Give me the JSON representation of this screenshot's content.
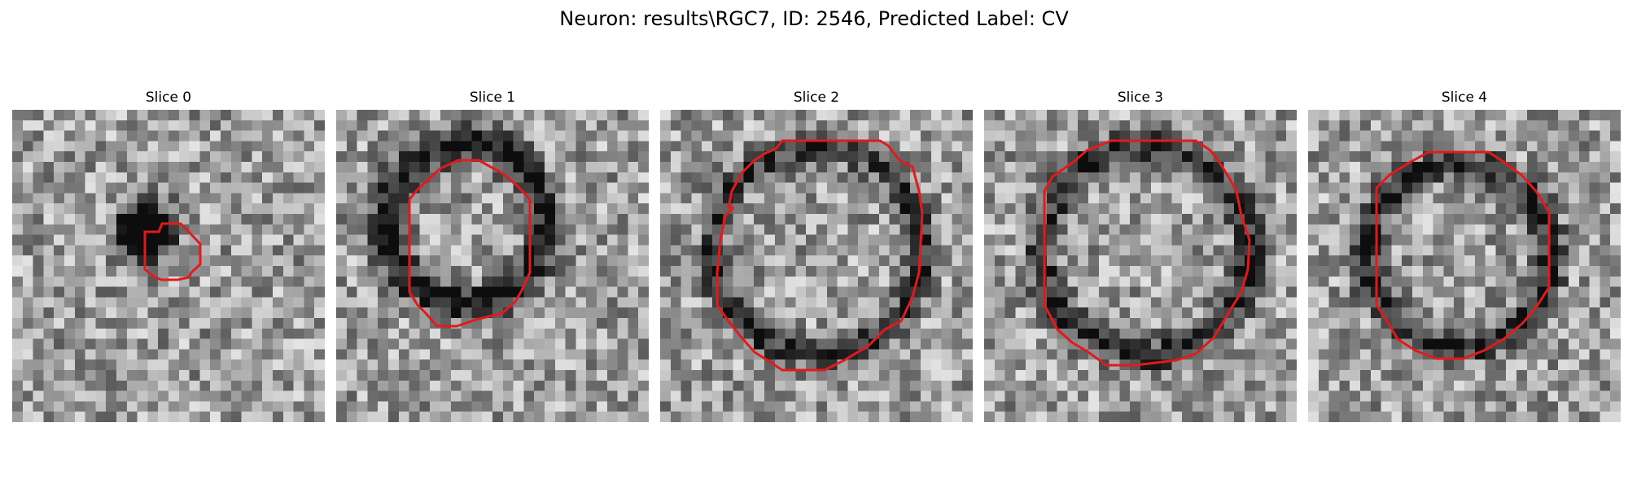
{
  "figure": {
    "title": "Neuron: results\\RGC7, ID: 2546, Predicted Label: CV"
  },
  "colors": {
    "contour": "#e31a1c",
    "background": "#ffffff",
    "colormap": "gray"
  },
  "panels": [
    {
      "title": "Slice 0"
    },
    {
      "title": "Slice 1"
    },
    {
      "title": "Slice 2"
    },
    {
      "title": "Slice 3"
    },
    {
      "title": "Slice 4"
    }
  ]
}
